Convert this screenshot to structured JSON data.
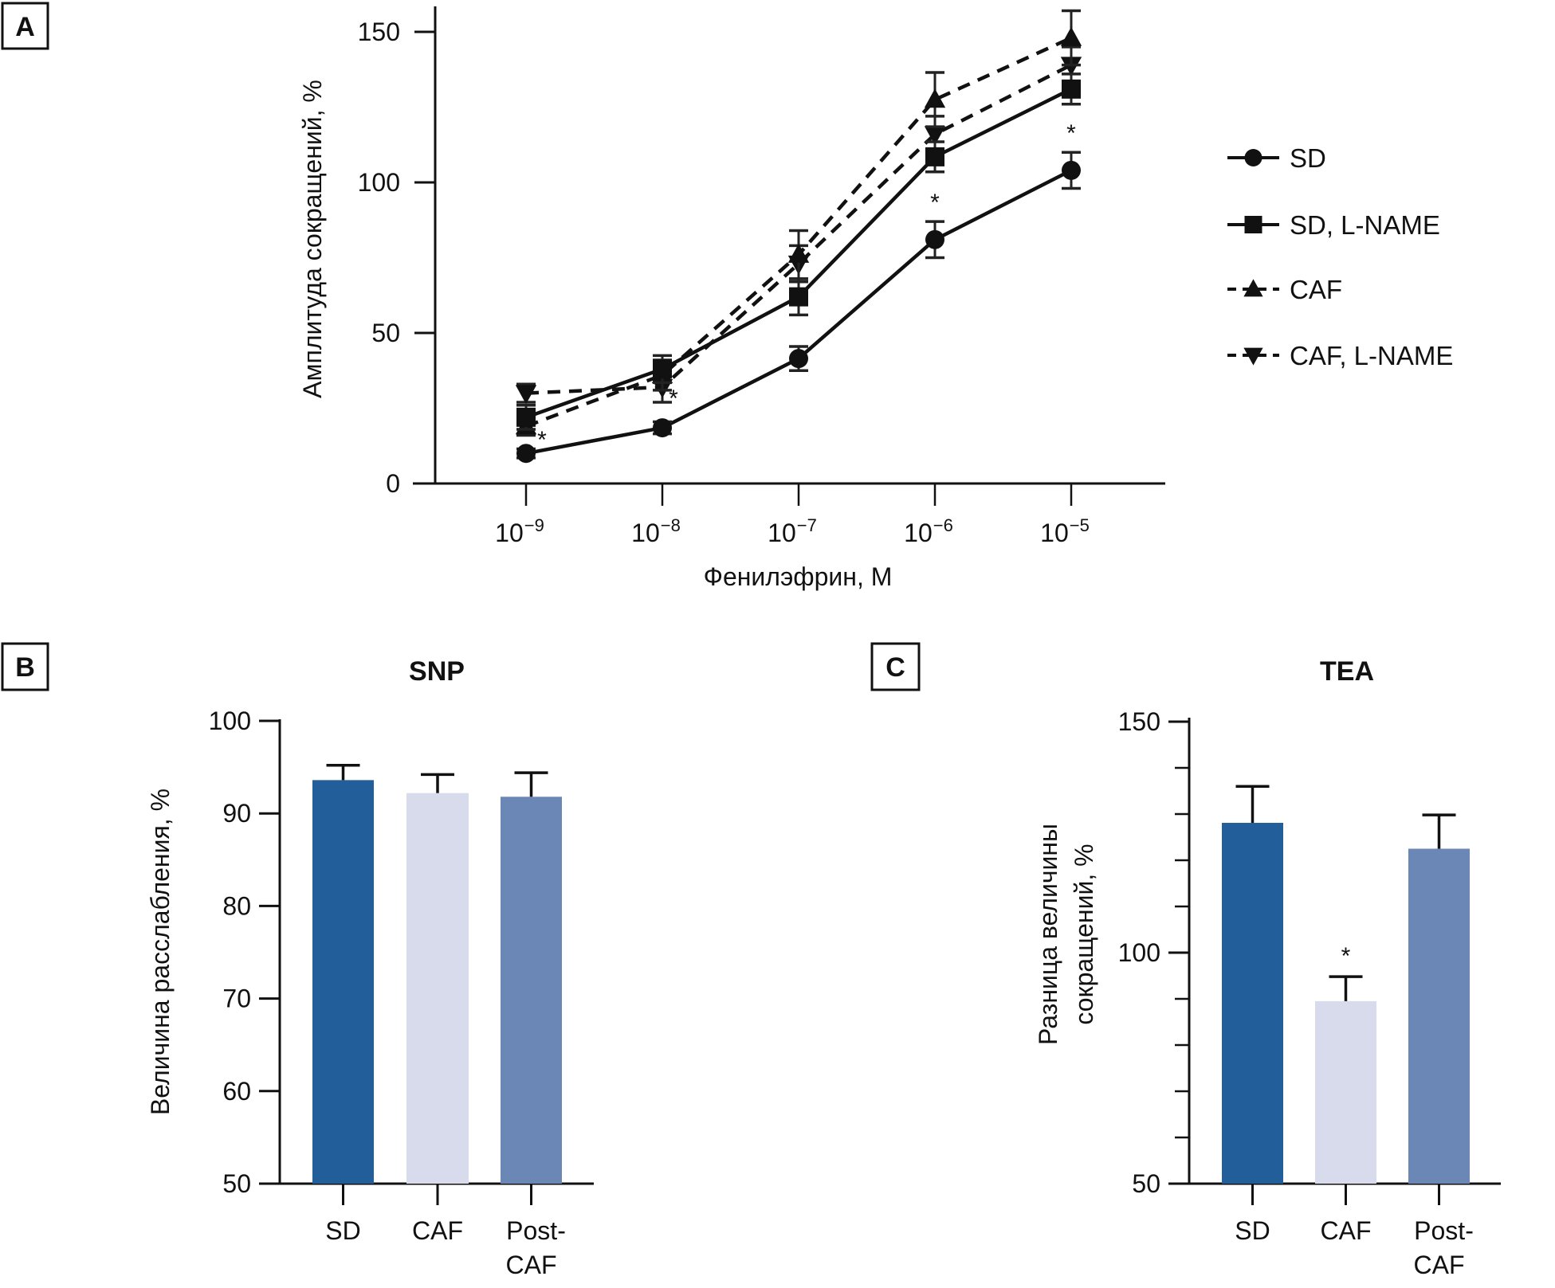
{
  "chart_data": [
    {
      "panel": "A",
      "type": "line",
      "title": "",
      "xlabel": "Фенилэфрин, М",
      "ylabel": "Амплитуда сокращений, %",
      "x_scale": "log",
      "categories": [
        "10⁻⁹",
        "10⁻⁸",
        "10⁻⁷",
        "10⁻⁶",
        "10⁻⁵"
      ],
      "x_tick_base": "10",
      "x_tick_exponents": [
        "−9",
        "−8",
        "−7",
        "−6",
        "−5"
      ],
      "x": [
        1e-09,
        1e-08,
        1e-07,
        1e-06,
        1e-05
      ],
      "ylim": [
        0,
        155
      ],
      "yticks": [
        0,
        50,
        100,
        150
      ],
      "grid": false,
      "legend_position": "right",
      "series": [
        {
          "name": "SD",
          "marker": "circle",
          "line": "solid",
          "values": [
            10,
            18.5,
            41.5,
            81,
            104
          ],
          "errors": [
            1.5,
            2,
            4,
            6,
            6
          ],
          "significant": [
            true,
            true,
            false,
            true,
            true
          ]
        },
        {
          "name": "SD, L-NAME",
          "marker": "square",
          "line": "solid",
          "values": [
            22,
            38,
            62,
            108.5,
            131
          ],
          "errors": [
            4,
            4.5,
            6,
            5,
            5
          ],
          "significant": [
            false,
            false,
            false,
            false,
            false
          ]
        },
        {
          "name": "CAF",
          "marker": "triangle-up",
          "line": "dashed",
          "values": [
            19,
            36,
            76,
            127.5,
            148
          ],
          "errors": [
            3,
            5,
            8,
            9,
            9
          ],
          "significant": [
            false,
            false,
            false,
            false,
            false
          ]
        },
        {
          "name": "CAF, L-NAME",
          "marker": "triangle-down",
          "line": "dashed",
          "values": [
            30,
            32,
            73,
            116,
            139
          ],
          "errors": [
            3,
            5,
            6,
            6,
            6
          ],
          "significant": [
            false,
            false,
            false,
            false,
            false
          ]
        }
      ],
      "annotations": [
        "*"
      ]
    },
    {
      "panel": "B",
      "type": "bar",
      "title": "SNP",
      "xlabel": "",
      "ylabel": "Величина расслабления, %",
      "categories": [
        "SD",
        "CAF",
        "Post-CAF"
      ],
      "category_lines": [
        [
          "SD"
        ],
        [
          "CAF"
        ],
        [
          "Post-",
          "CAF"
        ]
      ],
      "values": [
        93.6,
        92.2,
        91.8
      ],
      "errors": [
        1.6,
        2.0,
        2.6
      ],
      "colors": [
        "#225e99",
        "#d7dbeb",
        "#6b87b6"
      ],
      "ylim": [
        50,
        100
      ],
      "yticks": [
        50,
        60,
        70,
        80,
        90,
        100
      ],
      "significant": [
        false,
        false,
        false
      ],
      "grid": false
    },
    {
      "panel": "C",
      "type": "bar",
      "title": "TEA",
      "xlabel": "",
      "ylabel": "Разница величины сокращений, %",
      "ylabel_lines": [
        "Разница величины",
        "сокращений, %"
      ],
      "categories": [
        "SD",
        "CAF",
        "Post-CAF"
      ],
      "category_lines": [
        [
          "SD"
        ],
        [
          "CAF"
        ],
        [
          "Post-",
          "CAF"
        ]
      ],
      "values": [
        128.1,
        89.5,
        122.5
      ],
      "errors": [
        7.9,
        5.3,
        7.3
      ],
      "colors": [
        "#225e99",
        "#d7dbeb",
        "#6b87b6"
      ],
      "ylim": [
        50,
        150
      ],
      "yticks": [
        50,
        100,
        150
      ],
      "minor_ticks": [
        60,
        70,
        80,
        90,
        110,
        120,
        130,
        140
      ],
      "significant": [
        false,
        true,
        false
      ],
      "grid": false
    }
  ],
  "labels": {
    "panel_a": "A",
    "panel_b": "B",
    "panel_c": "C",
    "significance_marker": "*"
  }
}
